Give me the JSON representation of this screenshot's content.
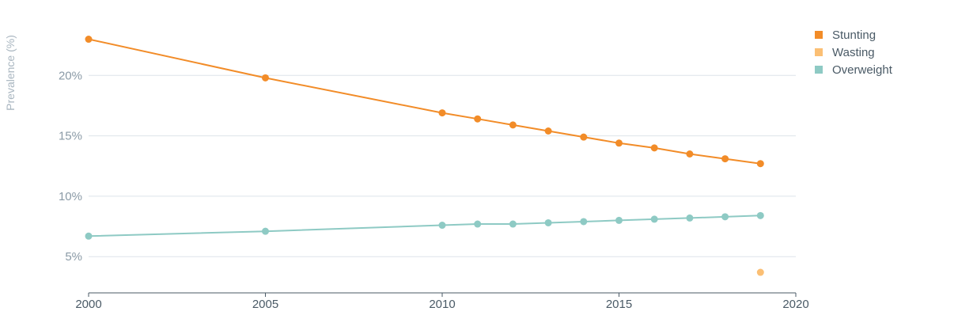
{
  "chart_data": {
    "type": "line",
    "ylabel": "Prevalence (%)",
    "xlim": [
      2000,
      2020
    ],
    "ylim": [
      2,
      25
    ],
    "x_ticks": [
      2000,
      2005,
      2010,
      2015,
      2020
    ],
    "y_ticks": [
      5,
      10,
      15,
      20
    ],
    "y_tick_labels": [
      "5%",
      "10%",
      "15%",
      "20%"
    ],
    "grid": "horizontal",
    "legend_position": "top-right",
    "series": [
      {
        "name": "Stunting",
        "color": "#f28c28",
        "points": [
          [
            2000,
            23.0
          ],
          [
            2005,
            19.8
          ],
          [
            2010,
            16.9
          ],
          [
            2011,
            16.4
          ],
          [
            2012,
            15.9
          ],
          [
            2013,
            15.4
          ],
          [
            2014,
            14.9
          ],
          [
            2015,
            14.4
          ],
          [
            2016,
            14.0
          ],
          [
            2017,
            13.5
          ],
          [
            2018,
            13.1
          ],
          [
            2019,
            12.7
          ]
        ]
      },
      {
        "name": "Wasting",
        "color": "#fbbf74",
        "points": [
          [
            2019,
            3.7
          ]
        ]
      },
      {
        "name": "Overweight",
        "color": "#8ecac4",
        "points": [
          [
            2000,
            6.7
          ],
          [
            2005,
            7.1
          ],
          [
            2010,
            7.6
          ],
          [
            2011,
            7.7
          ],
          [
            2012,
            7.7
          ],
          [
            2013,
            7.8
          ],
          [
            2014,
            7.9
          ],
          [
            2015,
            8.0
          ],
          [
            2016,
            8.1
          ],
          [
            2017,
            8.2
          ],
          [
            2018,
            8.3
          ],
          [
            2019,
            8.4
          ]
        ]
      }
    ]
  }
}
